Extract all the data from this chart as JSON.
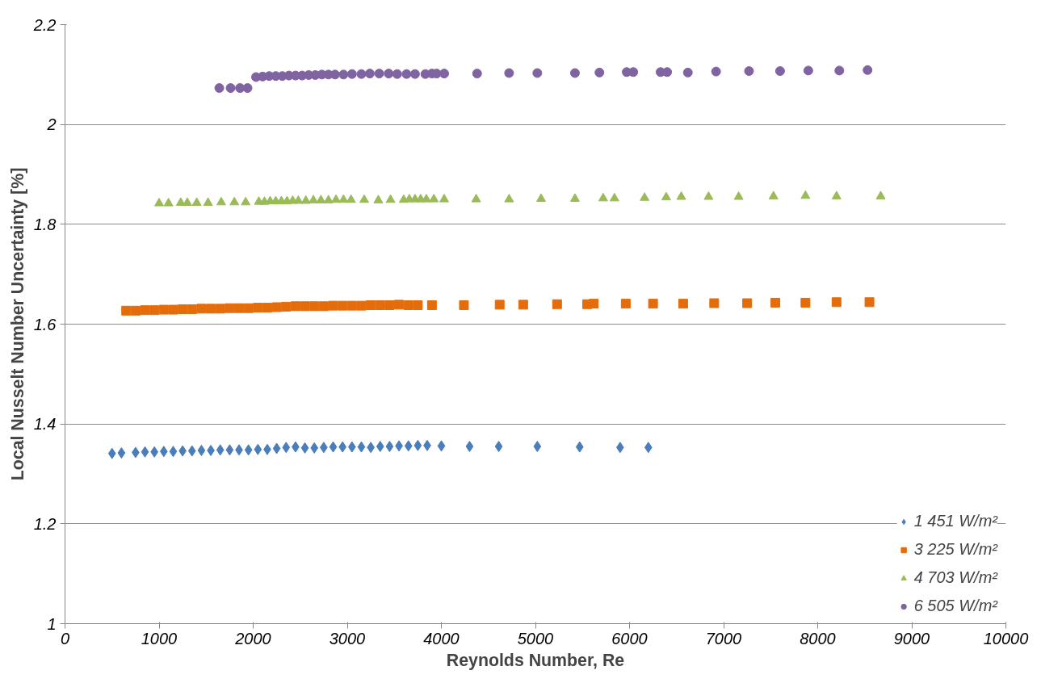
{
  "chart_data": {
    "type": "scatter",
    "xlabel": "Reynolds Number, Re",
    "ylabel": "Local Nusselt Number Uncertainty [%]",
    "xlim": [
      0,
      10000
    ],
    "ylim": [
      1,
      2.2
    ],
    "xticks": [
      0,
      1000,
      2000,
      3000,
      4000,
      5000,
      6000,
      7000,
      8000,
      9000,
      10000
    ],
    "yticks": [
      1,
      1.2,
      1.4,
      1.6,
      1.8,
      2,
      2.2
    ],
    "grid": "y",
    "legend": "bottom right",
    "series": [
      {
        "name": "1 451 W/m²",
        "color": "#4a7ebb",
        "marker": "diamond",
        "x": [
          500,
          600,
          750,
          850,
          950,
          1050,
          1150,
          1250,
          1350,
          1450,
          1550,
          1650,
          1750,
          1850,
          1950,
          2050,
          2150,
          2250,
          2350,
          2450,
          2550,
          2650,
          2750,
          2850,
          2950,
          3050,
          3150,
          3250,
          3350,
          3450,
          3550,
          3650,
          3750,
          3850,
          4000,
          4300,
          4610,
          5020,
          5470,
          5900,
          6200
        ],
        "values": [
          1.341,
          1.342,
          1.343,
          1.344,
          1.344,
          1.345,
          1.345,
          1.346,
          1.346,
          1.347,
          1.347,
          1.348,
          1.348,
          1.348,
          1.348,
          1.349,
          1.349,
          1.351,
          1.353,
          1.354,
          1.352,
          1.352,
          1.353,
          1.354,
          1.354,
          1.354,
          1.354,
          1.353,
          1.355,
          1.355,
          1.356,
          1.356,
          1.357,
          1.357,
          1.356,
          1.355,
          1.355,
          1.355,
          1.354,
          1.353,
          1.353
        ]
      },
      {
        "name": "3 225 W/m²",
        "color": "#e46c0a",
        "marker": "square",
        "x": [
          650,
          750,
          850,
          950,
          1050,
          1150,
          1250,
          1350,
          1450,
          1550,
          1650,
          1750,
          1850,
          1950,
          2050,
          2150,
          2250,
          2350,
          2450,
          2550,
          2650,
          2750,
          2850,
          2950,
          3050,
          3150,
          3250,
          3350,
          3450,
          3550,
          3650,
          3750,
          3900,
          4240,
          4620,
          4870,
          5230,
          5550,
          5620,
          5960,
          6250,
          6570,
          6900,
          7250,
          7550,
          7870,
          8200,
          8550
        ],
        "values": [
          1.627,
          1.627,
          1.628,
          1.628,
          1.629,
          1.629,
          1.63,
          1.63,
          1.631,
          1.631,
          1.631,
          1.632,
          1.632,
          1.632,
          1.633,
          1.633,
          1.634,
          1.635,
          1.636,
          1.636,
          1.636,
          1.636,
          1.637,
          1.637,
          1.637,
          1.637,
          1.638,
          1.638,
          1.638,
          1.639,
          1.638,
          1.638,
          1.638,
          1.638,
          1.639,
          1.639,
          1.64,
          1.64,
          1.641,
          1.641,
          1.641,
          1.641,
          1.642,
          1.642,
          1.643,
          1.643,
          1.644,
          1.644
        ]
      },
      {
        "name": "4 703 W/m²",
        "color": "#9bbb59",
        "marker": "triangle",
        "x": [
          1000,
          1100,
          1230,
          1300,
          1400,
          1520,
          1660,
          1800,
          1920,
          2060,
          2120,
          2180,
          2240,
          2300,
          2360,
          2420,
          2480,
          2560,
          2640,
          2720,
          2800,
          2880,
          2960,
          3040,
          3180,
          3330,
          3460,
          3600,
          3660,
          3720,
          3780,
          3840,
          3920,
          4030,
          4370,
          4720,
          5060,
          5420,
          5720,
          5840,
          6160,
          6390,
          6550,
          6840,
          7160,
          7530,
          7870,
          8200,
          8670
        ],
        "values": [
          1.842,
          1.842,
          1.843,
          1.843,
          1.843,
          1.843,
          1.844,
          1.844,
          1.844,
          1.845,
          1.845,
          1.846,
          1.846,
          1.846,
          1.846,
          1.847,
          1.847,
          1.847,
          1.848,
          1.848,
          1.848,
          1.849,
          1.849,
          1.849,
          1.849,
          1.848,
          1.849,
          1.849,
          1.85,
          1.85,
          1.85,
          1.85,
          1.85,
          1.85,
          1.85,
          1.85,
          1.851,
          1.851,
          1.852,
          1.852,
          1.853,
          1.854,
          1.855,
          1.855,
          1.855,
          1.856,
          1.857,
          1.856,
          1.856
        ]
      },
      {
        "name": "6 505 W/m²",
        "color": "#8064a2",
        "marker": "circle",
        "x": [
          1640,
          1760,
          1860,
          1940,
          2030,
          2100,
          2170,
          2240,
          2310,
          2380,
          2450,
          2520,
          2590,
          2660,
          2730,
          2800,
          2870,
          2960,
          3050,
          3150,
          3240,
          3340,
          3440,
          3530,
          3630,
          3720,
          3830,
          3900,
          3950,
          4030,
          4380,
          4720,
          5020,
          5420,
          5680,
          5970,
          6040,
          6330,
          6400,
          6620,
          6920,
          7270,
          7600,
          7900,
          8230,
          8530
        ],
        "values": [
          2.073,
          2.073,
          2.073,
          2.073,
          2.095,
          2.096,
          2.097,
          2.097,
          2.097,
          2.098,
          2.098,
          2.098,
          2.099,
          2.099,
          2.1,
          2.1,
          2.1,
          2.1,
          2.101,
          2.101,
          2.102,
          2.102,
          2.102,
          2.101,
          2.101,
          2.101,
          2.101,
          2.102,
          2.102,
          2.102,
          2.102,
          2.103,
          2.103,
          2.103,
          2.104,
          2.105,
          2.105,
          2.105,
          2.105,
          2.104,
          2.106,
          2.107,
          2.107,
          2.108,
          2.108,
          2.109
        ]
      }
    ]
  }
}
